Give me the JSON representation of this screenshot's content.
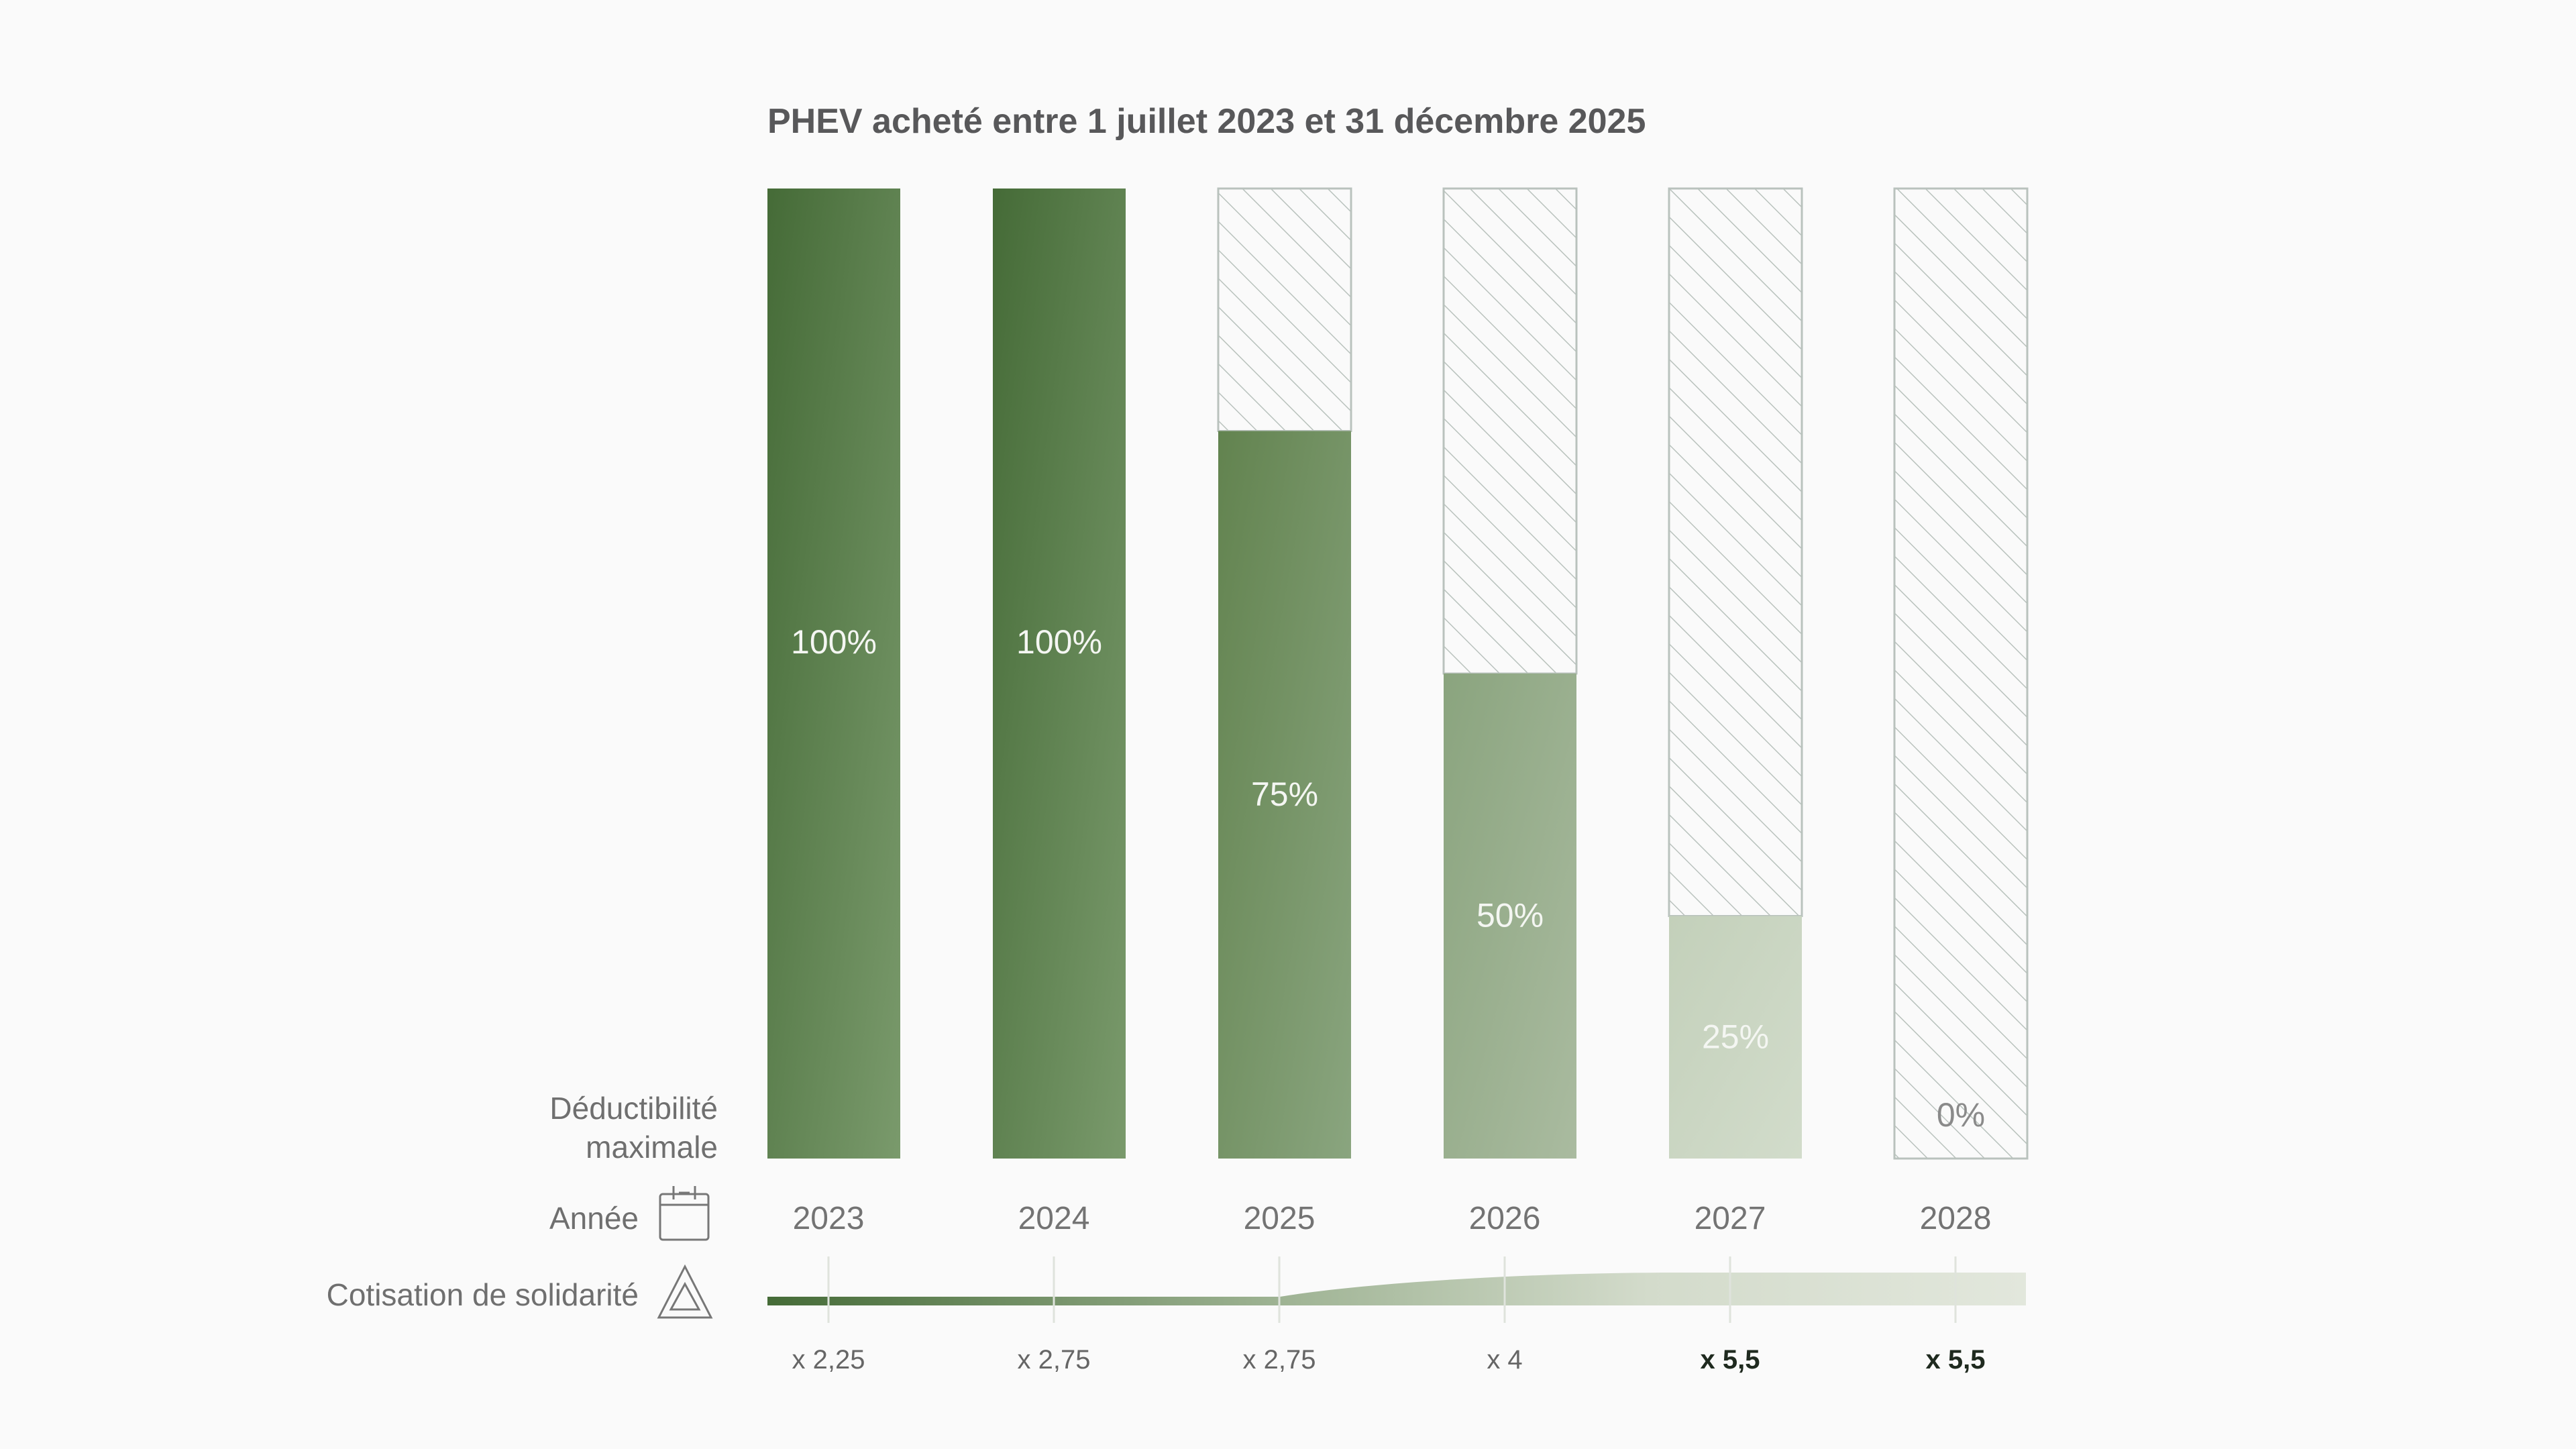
{
  "chart_data": {
    "type": "bar",
    "title": "PHEV acheté entre 1 juillet 2023 et 31 décembre 2025",
    "row_labels": {
      "deductibility": [
        "Déductibilité",
        "maximale"
      ],
      "year": "Année",
      "solidarity": "Cotisation de solidarité"
    },
    "categories": [
      "2023",
      "2024",
      "2025",
      "2026",
      "2027",
      "2028"
    ],
    "values": [
      100,
      100,
      75,
      50,
      25,
      0
    ],
    "value_labels": [
      "100%",
      "100%",
      "75%",
      "50%",
      "25%",
      "0%"
    ],
    "ylim": [
      0,
      100
    ],
    "multipliers": [
      "x 2,25",
      "x 2,75",
      "x 2,75",
      "x 4",
      "x 5,5",
      "x 5,5"
    ],
    "multiplier_values": [
      2.25,
      2.75,
      2.75,
      4,
      5.5,
      5.5
    ],
    "multiplier_bold": [
      false,
      false,
      false,
      false,
      true,
      true
    ],
    "colors": {
      "bar_100": [
        "#456b37",
        "#7a9a6c"
      ],
      "bar_75": [
        "#62834f",
        "#8aa57f"
      ],
      "bar_50": [
        "#8aa47e",
        "#aabba0"
      ],
      "bar_25": [
        "#c3d0ba",
        "#d2dccb"
      ],
      "hatch": "#b9c2bd",
      "band_start": "#456b37",
      "band_end": "#e2e7dc"
    },
    "icons": {
      "year": "calendar-icon",
      "solidarity": "warning-triangle-icon"
    }
  }
}
